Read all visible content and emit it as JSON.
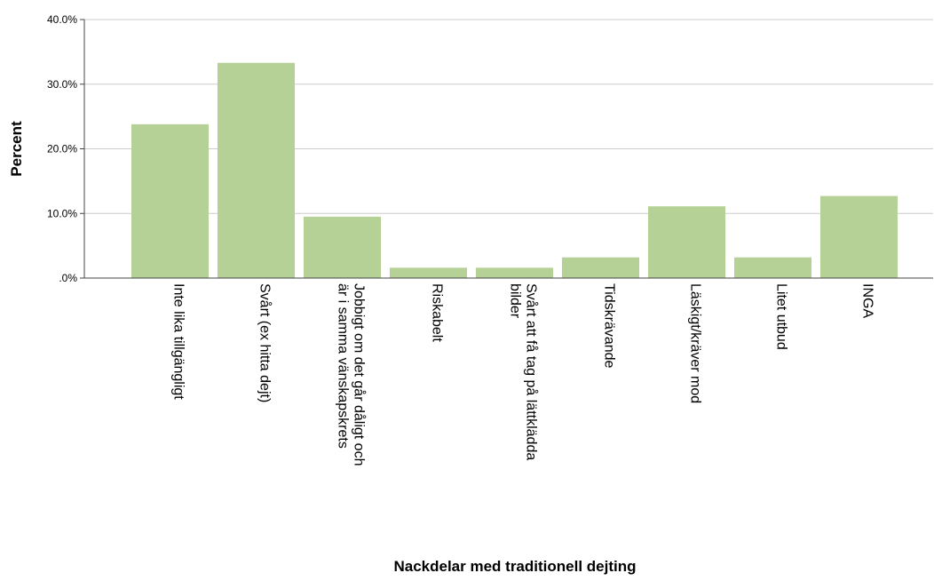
{
  "chart_data": {
    "type": "bar",
    "title": "",
    "xlabel": "Nackdelar med traditionell dejting",
    "ylabel": "Percent",
    "ylim": [
      0,
      40
    ],
    "yticks": [
      0,
      10,
      20,
      30,
      40
    ],
    "ytick_labels": [
      ".0%",
      "10.0%",
      "20.0%",
      "30.0%",
      "40.0%"
    ],
    "grid": true,
    "bar_color": "#b5d196",
    "categories": [
      [
        "Inte lika tillgängligt"
      ],
      [
        "Svårt (ex hitta dejt)"
      ],
      [
        "Jobbigt om det går dåligt och",
        "är i samma vänskapskrets"
      ],
      [
        "Riskabelt"
      ],
      [
        "Svårt att få tag på lättklädda",
        "bilder"
      ],
      [
        "Tidskrävande"
      ],
      [
        "Läskigt/kräver mod"
      ],
      [
        "Litet utbud"
      ],
      [
        "INGA"
      ]
    ],
    "values": [
      23.8,
      33.3,
      9.5,
      1.6,
      1.6,
      3.2,
      11.1,
      3.2,
      12.7
    ]
  }
}
